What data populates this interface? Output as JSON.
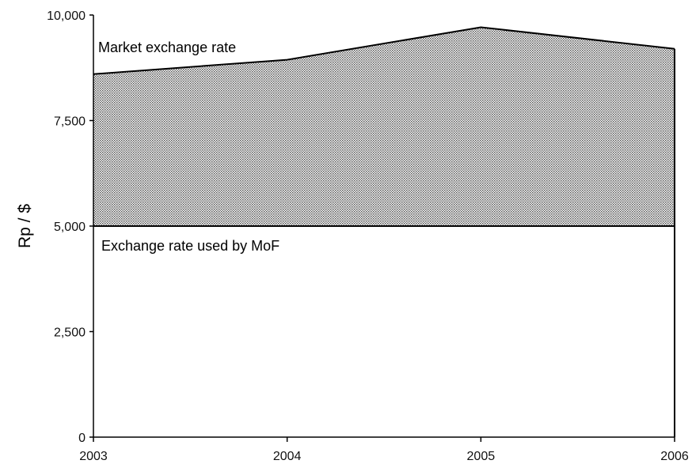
{
  "chart_data": {
    "type": "area",
    "x": [
      2003,
      2004,
      2005,
      2006
    ],
    "categories": [
      "2003",
      "2004",
      "2005",
      "2006"
    ],
    "series": [
      {
        "name": "Market exchange rate",
        "values": [
          8600,
          8940,
          9710,
          9200
        ]
      },
      {
        "name": "Exchange rate used by MoF",
        "values": [
          5000,
          5000,
          5000,
          5000
        ]
      }
    ],
    "ylabel": "Rp / $",
    "xlabel": "",
    "title": "",
    "ylim": [
      0,
      10000
    ],
    "yticks": [
      0,
      2500,
      5000,
      7500,
      10000
    ],
    "ytick_labels": [
      "0",
      "2,500",
      "5,000",
      "7,500",
      "10,000"
    ],
    "xtick_labels": [
      "2003",
      "2004",
      "2005",
      "2006"
    ],
    "annotations": {
      "market": "Market exchange rate",
      "mof": "Exchange rate used by MoF"
    },
    "grid": false,
    "legend": "none",
    "fill_pattern": "dotted-gray between series"
  }
}
